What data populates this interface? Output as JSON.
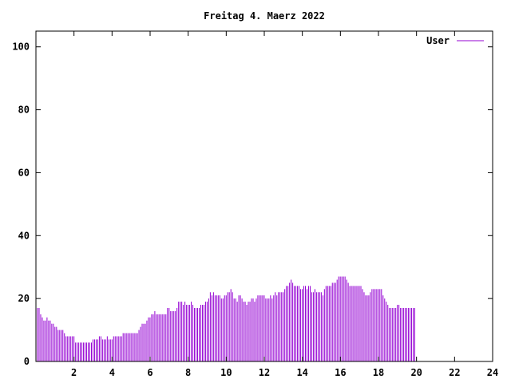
{
  "chart_data": {
    "type": "bar",
    "title": "Freitag 4. Maerz 2022",
    "xlabel": "",
    "ylabel": "",
    "xlim": [
      0,
      24
    ],
    "ylim": [
      0,
      105
    ],
    "x_ticks": [
      "2",
      "4",
      "6",
      "8",
      "10",
      "12",
      "14",
      "16",
      "18",
      "20",
      "22",
      "24"
    ],
    "y_ticks": [
      "0",
      "20",
      "40",
      "60",
      "80",
      "100"
    ],
    "grid": false,
    "legend_position": "top-right",
    "colors": {
      "series": "#9400d3",
      "axes": "#000000",
      "background": "#ffffff"
    },
    "series": [
      {
        "name": "User",
        "bar_width_hours": 0.0833,
        "values": [
          16,
          17,
          17,
          15,
          14,
          13,
          13,
          14,
          13,
          13,
          12,
          12,
          11,
          11,
          10,
          10,
          10,
          10,
          9,
          8,
          8,
          8,
          8,
          8,
          8,
          6,
          6,
          6,
          6,
          6,
          6,
          6,
          6,
          6,
          6,
          6,
          7,
          7,
          7,
          7,
          8,
          8,
          7,
          7,
          7,
          8,
          7,
          7,
          7,
          8,
          8,
          8,
          8,
          8,
          8,
          9,
          9,
          9,
          9,
          9,
          9,
          9,
          9,
          9,
          9,
          10,
          11,
          12,
          12,
          12,
          13,
          14,
          14,
          15,
          15,
          16,
          15,
          15,
          15,
          15,
          15,
          15,
          15,
          17,
          17,
          16,
          16,
          16,
          16,
          17,
          19,
          19,
          19,
          18,
          19,
          18,
          18,
          18,
          19,
          18,
          17,
          17,
          17,
          17,
          18,
          18,
          18,
          19,
          19,
          20,
          22,
          21,
          22,
          21,
          21,
          21,
          21,
          20,
          20,
          21,
          21,
          22,
          22,
          23,
          22,
          20,
          20,
          19,
          21,
          21,
          20,
          19,
          19,
          18,
          19,
          19,
          20,
          20,
          19,
          20,
          21,
          21,
          21,
          21,
          21,
          20,
          20,
          20,
          21,
          20,
          21,
          22,
          21,
          22,
          22,
          22,
          22,
          23,
          24,
          24,
          25,
          26,
          25,
          24,
          24,
          24,
          24,
          23,
          23,
          24,
          24,
          23,
          24,
          24,
          22,
          22,
          23,
          22,
          22,
          22,
          22,
          21,
          23,
          24,
          24,
          24,
          24,
          25,
          25,
          25,
          26,
          27,
          27,
          27,
          27,
          27,
          26,
          25,
          24,
          24,
          24,
          24,
          24,
          24,
          24,
          24,
          23,
          22,
          21,
          21,
          21,
          22,
          23,
          23,
          23,
          23,
          23,
          23,
          23,
          21,
          20,
          19,
          18,
          17,
          17,
          17,
          17,
          17,
          18,
          18,
          17,
          17,
          17,
          17,
          17,
          17,
          17,
          17,
          17,
          17
        ]
      }
    ]
  }
}
